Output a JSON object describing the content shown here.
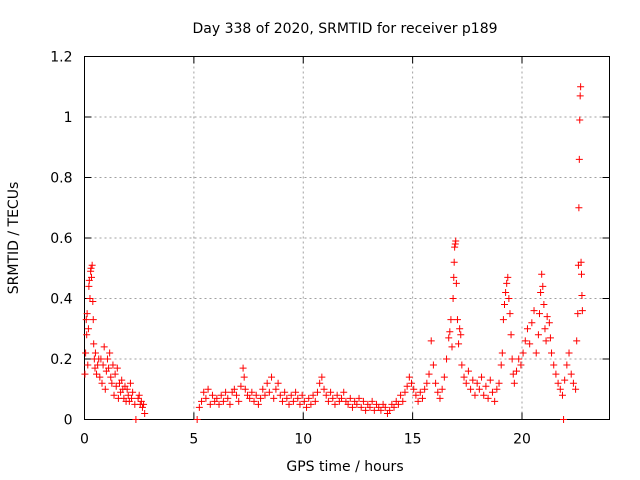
{
  "chart_data": {
    "type": "scatter",
    "title": "Day 338 of 2020, SRMTID for receiver p189",
    "xlabel": "GPS time / hours",
    "ylabel": "SRMTID / TECUs",
    "xlim": [
      0,
      24
    ],
    "ylim": [
      0,
      1.2
    ],
    "xticks": [
      0,
      5,
      10,
      15,
      20
    ],
    "xtick_labels": [
      "0",
      "5",
      "10",
      "15",
      "20"
    ],
    "yticks": [
      0,
      0.2,
      0.4,
      0.6,
      0.8,
      1.0,
      1.2
    ],
    "ytick_labels": [
      "0",
      "0.2",
      "0.4",
      "0.6",
      "0.8",
      "1",
      "1.2"
    ],
    "grid": true,
    "marker": "+",
    "color": "#ff0000",
    "series": [
      {
        "name": "SRMTID",
        "points": [
          [
            0.02,
            0.15
          ],
          [
            0.05,
            0.22
          ],
          [
            0.08,
            0.33
          ],
          [
            0.1,
            0.28
          ],
          [
            0.12,
            0.35
          ],
          [
            0.15,
            0.18
          ],
          [
            0.18,
            0.3
          ],
          [
            0.2,
            0.44
          ],
          [
            0.22,
            0.46
          ],
          [
            0.25,
            0.4
          ],
          [
            0.28,
            0.49
          ],
          [
            0.3,
            0.5
          ],
          [
            0.32,
            0.47
          ],
          [
            0.35,
            0.51
          ],
          [
            0.38,
            0.39
          ],
          [
            0.4,
            0.33
          ],
          [
            0.42,
            0.25
          ],
          [
            0.45,
            0.2
          ],
          [
            0.48,
            0.17
          ],
          [
            0.5,
            0.22
          ],
          [
            0.55,
            0.15
          ],
          [
            0.6,
            0.18
          ],
          [
            0.65,
            0.2
          ],
          [
            0.7,
            0.14
          ],
          [
            0.75,
            0.2
          ],
          [
            0.8,
            0.12
          ],
          [
            0.85,
            0.18
          ],
          [
            0.9,
            0.24
          ],
          [
            0.95,
            0.1
          ],
          [
            1.0,
            0.16
          ],
          [
            1.05,
            0.2
          ],
          [
            1.1,
            0.17
          ],
          [
            1.15,
            0.22
          ],
          [
            1.2,
            0.14
          ],
          [
            1.25,
            0.12
          ],
          [
            1.3,
            0.18
          ],
          [
            1.35,
            0.08
          ],
          [
            1.4,
            0.15
          ],
          [
            1.45,
            0.11
          ],
          [
            1.5,
            0.17
          ],
          [
            1.55,
            0.07
          ],
          [
            1.6,
            0.12
          ],
          [
            1.65,
            0.09
          ],
          [
            1.7,
            0.13
          ],
          [
            1.75,
            0.1
          ],
          [
            1.8,
            0.07
          ],
          [
            1.85,
            0.11
          ],
          [
            1.9,
            0.06
          ],
          [
            1.95,
            0.1
          ],
          [
            2.0,
            0.08
          ],
          [
            2.05,
            0.06
          ],
          [
            2.1,
            0.12
          ],
          [
            2.15,
            0.07
          ],
          [
            2.2,
            0.09
          ],
          [
            2.3,
            0.05
          ],
          [
            2.35,
            0.0
          ],
          [
            2.45,
            0.07
          ],
          [
            2.5,
            0.08
          ],
          [
            2.55,
            0.05
          ],
          [
            2.6,
            0.06
          ],
          [
            2.65,
            0.04
          ],
          [
            2.7,
            0.05
          ],
          [
            2.75,
            0.02
          ],
          [
            5.15,
            0.0
          ],
          [
            5.25,
            0.04
          ],
          [
            5.35,
            0.06
          ],
          [
            5.45,
            0.09
          ],
          [
            5.55,
            0.07
          ],
          [
            5.65,
            0.1
          ],
          [
            5.75,
            0.05
          ],
          [
            5.85,
            0.08
          ],
          [
            5.95,
            0.06
          ],
          [
            6.05,
            0.07
          ],
          [
            6.15,
            0.05
          ],
          [
            6.25,
            0.08
          ],
          [
            6.35,
            0.06
          ],
          [
            6.45,
            0.09
          ],
          [
            6.55,
            0.07
          ],
          [
            6.65,
            0.05
          ],
          [
            6.75,
            0.09
          ],
          [
            6.85,
            0.1
          ],
          [
            6.95,
            0.08
          ],
          [
            7.05,
            0.06
          ],
          [
            7.15,
            0.11
          ],
          [
            7.25,
            0.17
          ],
          [
            7.3,
            0.14
          ],
          [
            7.35,
            0.1
          ],
          [
            7.45,
            0.08
          ],
          [
            7.55,
            0.07
          ],
          [
            7.65,
            0.09
          ],
          [
            7.75,
            0.06
          ],
          [
            7.85,
            0.08
          ],
          [
            7.95,
            0.05
          ],
          [
            8.05,
            0.07
          ],
          [
            8.15,
            0.1
          ],
          [
            8.25,
            0.08
          ],
          [
            8.35,
            0.12
          ],
          [
            8.45,
            0.09
          ],
          [
            8.55,
            0.14
          ],
          [
            8.65,
            0.07
          ],
          [
            8.75,
            0.1
          ],
          [
            8.85,
            0.12
          ],
          [
            8.95,
            0.08
          ],
          [
            9.05,
            0.06
          ],
          [
            9.15,
            0.09
          ],
          [
            9.25,
            0.07
          ],
          [
            9.35,
            0.05
          ],
          [
            9.45,
            0.08
          ],
          [
            9.55,
            0.06
          ],
          [
            9.65,
            0.09
          ],
          [
            9.75,
            0.07
          ],
          [
            9.85,
            0.05
          ],
          [
            9.95,
            0.08
          ],
          [
            10.05,
            0.06
          ],
          [
            10.15,
            0.04
          ],
          [
            10.25,
            0.07
          ],
          [
            10.35,
            0.05
          ],
          [
            10.45,
            0.08
          ],
          [
            10.55,
            0.06
          ],
          [
            10.65,
            0.09
          ],
          [
            10.75,
            0.12
          ],
          [
            10.85,
            0.14
          ],
          [
            10.95,
            0.1
          ],
          [
            11.05,
            0.08
          ],
          [
            11.15,
            0.06
          ],
          [
            11.25,
            0.09
          ],
          [
            11.35,
            0.07
          ],
          [
            11.45,
            0.05
          ],
          [
            11.55,
            0.08
          ],
          [
            11.65,
            0.06
          ],
          [
            11.75,
            0.07
          ],
          [
            11.85,
            0.09
          ],
          [
            11.95,
            0.06
          ],
          [
            12.05,
            0.05
          ],
          [
            12.15,
            0.07
          ],
          [
            12.25,
            0.04
          ],
          [
            12.35,
            0.06
          ],
          [
            12.45,
            0.05
          ],
          [
            12.55,
            0.07
          ],
          [
            12.65,
            0.04
          ],
          [
            12.75,
            0.06
          ],
          [
            12.85,
            0.03
          ],
          [
            12.95,
            0.05
          ],
          [
            13.05,
            0.04
          ],
          [
            13.15,
            0.06
          ],
          [
            13.25,
            0.03
          ],
          [
            13.35,
            0.05
          ],
          [
            13.45,
            0.04
          ],
          [
            13.55,
            0.03
          ],
          [
            13.65,
            0.05
          ],
          [
            13.75,
            0.04
          ],
          [
            13.85,
            0.02
          ],
          [
            13.95,
            0.03
          ],
          [
            14.05,
            0.05
          ],
          [
            14.15,
            0.04
          ],
          [
            14.25,
            0.06
          ],
          [
            14.35,
            0.05
          ],
          [
            14.45,
            0.08
          ],
          [
            14.55,
            0.06
          ],
          [
            14.65,
            0.09
          ],
          [
            14.75,
            0.11
          ],
          [
            14.85,
            0.14
          ],
          [
            14.95,
            0.12
          ],
          [
            15.05,
            0.1
          ],
          [
            15.15,
            0.08
          ],
          [
            15.25,
            0.06
          ],
          [
            15.35,
            0.09
          ],
          [
            15.45,
            0.07
          ],
          [
            15.55,
            0.1
          ],
          [
            15.65,
            0.12
          ],
          [
            15.75,
            0.15
          ],
          [
            15.85,
            0.26
          ],
          [
            15.95,
            0.18
          ],
          [
            16.05,
            0.12
          ],
          [
            16.15,
            0.09
          ],
          [
            16.25,
            0.07
          ],
          [
            16.35,
            0.1
          ],
          [
            16.45,
            0.14
          ],
          [
            16.55,
            0.2
          ],
          [
            16.65,
            0.27
          ],
          [
            16.7,
            0.29
          ],
          [
            16.75,
            0.33
          ],
          [
            16.8,
            0.24
          ],
          [
            16.85,
            0.4
          ],
          [
            16.88,
            0.47
          ],
          [
            16.9,
            0.52
          ],
          [
            16.92,
            0.57
          ],
          [
            16.95,
            0.58
          ],
          [
            16.97,
            0.59
          ],
          [
            17.0,
            0.45
          ],
          [
            17.05,
            0.33
          ],
          [
            17.1,
            0.25
          ],
          [
            17.15,
            0.3
          ],
          [
            17.2,
            0.28
          ],
          [
            17.25,
            0.18
          ],
          [
            17.35,
            0.14
          ],
          [
            17.45,
            0.12
          ],
          [
            17.55,
            0.16
          ],
          [
            17.65,
            0.1
          ],
          [
            17.75,
            0.13
          ],
          [
            17.85,
            0.08
          ],
          [
            17.95,
            0.12
          ],
          [
            18.05,
            0.1
          ],
          [
            18.15,
            0.14
          ],
          [
            18.25,
            0.08
          ],
          [
            18.35,
            0.11
          ],
          [
            18.45,
            0.07
          ],
          [
            18.55,
            0.13
          ],
          [
            18.65,
            0.09
          ],
          [
            18.75,
            0.06
          ],
          [
            18.85,
            0.1
          ],
          [
            18.95,
            0.12
          ],
          [
            19.05,
            0.18
          ],
          [
            19.1,
            0.22
          ],
          [
            19.15,
            0.33
          ],
          [
            19.2,
            0.38
          ],
          [
            19.25,
            0.42
          ],
          [
            19.3,
            0.45
          ],
          [
            19.35,
            0.47
          ],
          [
            19.4,
            0.4
          ],
          [
            19.45,
            0.35
          ],
          [
            19.5,
            0.28
          ],
          [
            19.55,
            0.2
          ],
          [
            19.6,
            0.15
          ],
          [
            19.65,
            0.12
          ],
          [
            19.75,
            0.16
          ],
          [
            19.85,
            0.2
          ],
          [
            19.95,
            0.18
          ],
          [
            20.05,
            0.22
          ],
          [
            20.15,
            0.26
          ],
          [
            20.25,
            0.3
          ],
          [
            20.35,
            0.25
          ],
          [
            20.45,
            0.32
          ],
          [
            20.55,
            0.36
          ],
          [
            20.65,
            0.22
          ],
          [
            20.75,
            0.28
          ],
          [
            20.8,
            0.35
          ],
          [
            20.85,
            0.42
          ],
          [
            20.9,
            0.48
          ],
          [
            20.95,
            0.44
          ],
          [
            21.0,
            0.38
          ],
          [
            21.05,
            0.3
          ],
          [
            21.1,
            0.26
          ],
          [
            21.15,
            0.34
          ],
          [
            21.25,
            0.32
          ],
          [
            21.3,
            0.27
          ],
          [
            21.35,
            0.22
          ],
          [
            21.45,
            0.18
          ],
          [
            21.55,
            0.15
          ],
          [
            21.65,
            0.12
          ],
          [
            21.75,
            0.1
          ],
          [
            21.85,
            0.08
          ],
          [
            21.9,
            0.0
          ],
          [
            21.95,
            0.13
          ],
          [
            22.05,
            0.18
          ],
          [
            22.15,
            0.22
          ],
          [
            22.25,
            0.15
          ],
          [
            22.35,
            0.12
          ],
          [
            22.45,
            0.1
          ],
          [
            22.5,
            0.26
          ],
          [
            22.55,
            0.35
          ],
          [
            22.58,
            0.51
          ],
          [
            22.6,
            0.7
          ],
          [
            22.62,
            0.86
          ],
          [
            22.64,
            0.99
          ],
          [
            22.66,
            1.07
          ],
          [
            22.68,
            1.1
          ],
          [
            22.7,
            0.52
          ],
          [
            22.72,
            0.48
          ],
          [
            22.74,
            0.41
          ],
          [
            22.76,
            0.36
          ]
        ]
      }
    ]
  }
}
